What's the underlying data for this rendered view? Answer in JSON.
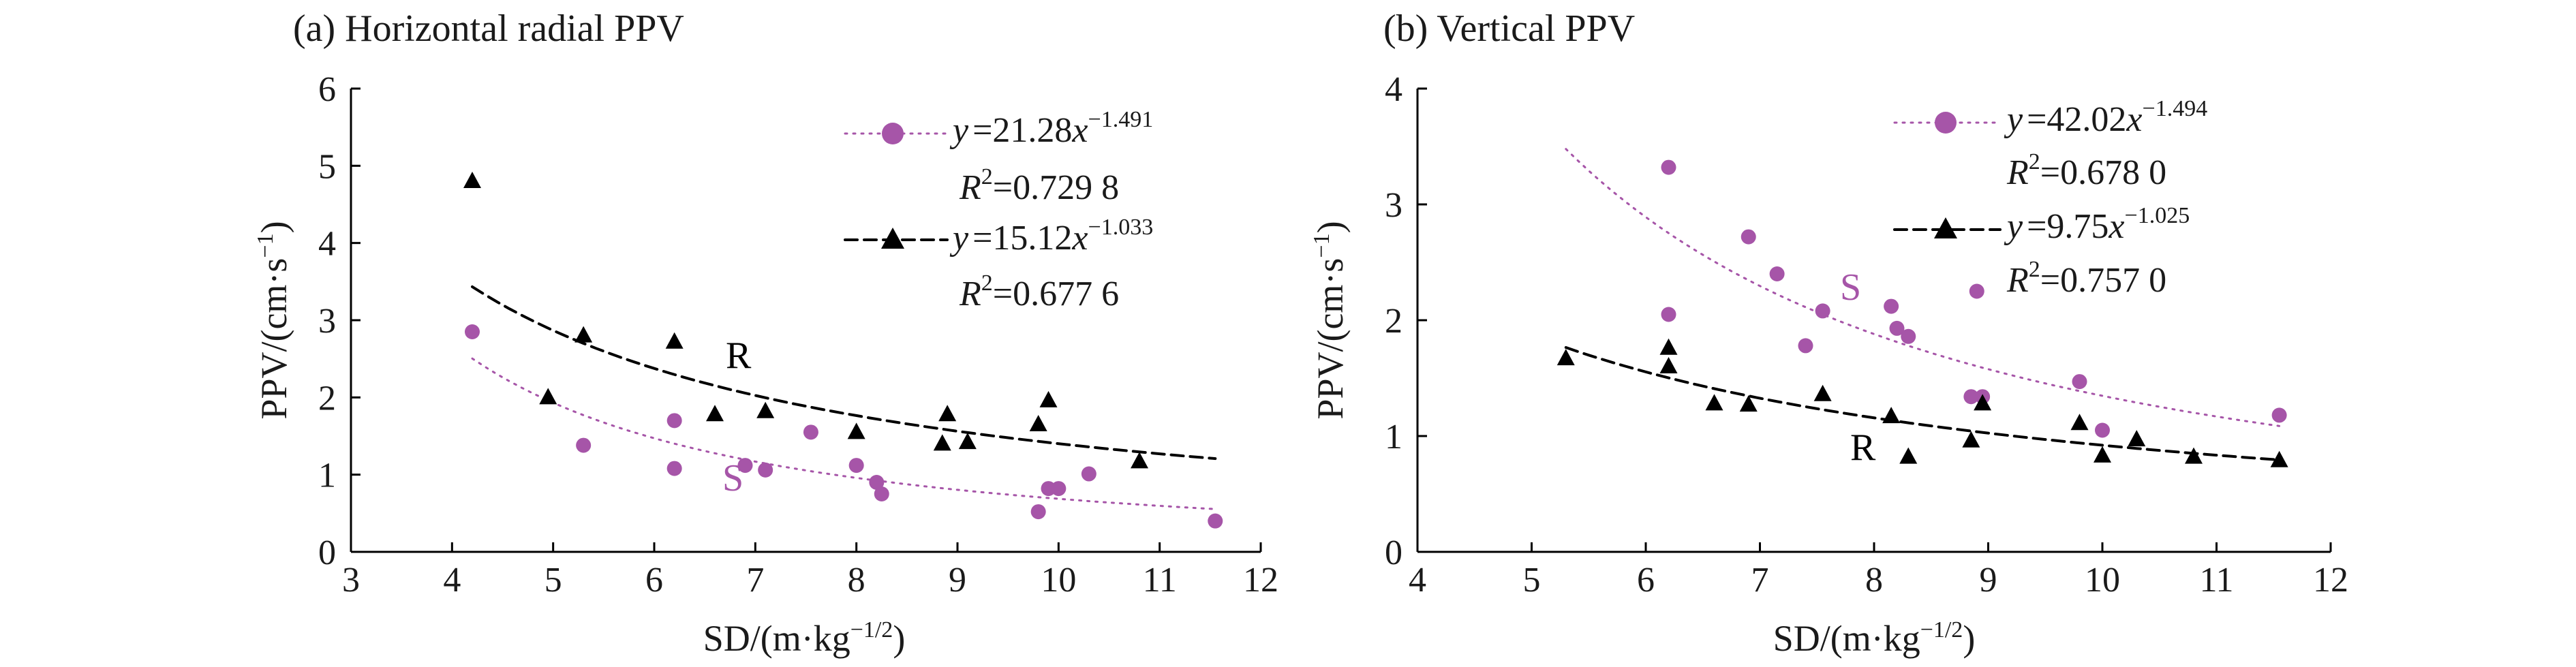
{
  "colors": {
    "s_series": "#a655a8",
    "r_series": "#000000",
    "axis": "#000000"
  },
  "chart_data": [
    {
      "type": "scatter",
      "title": "(a) Horizontal radial PPV",
      "xlabel": "SD/(m·kg",
      "xlabel_sup": "−1/2",
      "xlabel_end": ")",
      "ylabel": "PPV/(cm·s",
      "ylabel_sup": "−1",
      "ylabel_end": ")",
      "xlim": [
        3,
        12
      ],
      "ylim": [
        0,
        6
      ],
      "xticks": [
        3,
        4,
        5,
        6,
        7,
        8,
        9,
        10,
        11,
        12
      ],
      "yticks": [
        0,
        1,
        2,
        3,
        4,
        5,
        6
      ],
      "legend_position": "top-right",
      "series": [
        {
          "name": "S",
          "marker": "circle",
          "color": "#a655a8",
          "fit": {
            "a": 21.28,
            "b": -1.491,
            "x_range": [
              4.2,
              11.55
            ],
            "style": "dotted"
          },
          "equation": {
            "lhs": "y",
            "rhs": "=21.28",
            "var": "x",
            "exp": "−1.491",
            "r2_label": "R",
            "r2_value": "=0.729 8"
          },
          "points": [
            [
              4.2,
              2.85
            ],
            [
              5.3,
              1.38
            ],
            [
              6.2,
              1.7
            ],
            [
              6.2,
              1.08
            ],
            [
              6.9,
              1.12
            ],
            [
              7.1,
              1.06
            ],
            [
              7.55,
              1.55
            ],
            [
              8.0,
              1.12
            ],
            [
              8.2,
              0.9
            ],
            [
              8.25,
              0.75
            ],
            [
              9.8,
              0.52
            ],
            [
              9.9,
              0.82
            ],
            [
              10.0,
              0.82
            ],
            [
              10.3,
              1.01
            ],
            [
              11.55,
              0.4
            ]
          ]
        },
        {
          "name": "R",
          "marker": "triangle",
          "color": "#000000",
          "fit": {
            "a": 15.12,
            "b": -1.033,
            "x_range": [
              4.2,
              11.55
            ],
            "style": "dashed"
          },
          "equation": {
            "lhs": "y",
            "rhs": "=15.12",
            "var": "x",
            "exp": "−1.033",
            "r2_label": "R",
            "r2_value": "=0.677 6"
          },
          "points": [
            [
              4.2,
              4.8
            ],
            [
              4.95,
              2.0
            ],
            [
              5.3,
              2.8
            ],
            [
              6.2,
              2.72
            ],
            [
              6.6,
              1.78
            ],
            [
              7.1,
              1.82
            ],
            [
              8.0,
              1.55
            ],
            [
              8.85,
              1.4
            ],
            [
              8.9,
              1.78
            ],
            [
              9.1,
              1.42
            ],
            [
              9.8,
              1.65
            ],
            [
              9.9,
              1.96
            ],
            [
              10.8,
              1.17
            ]
          ]
        }
      ]
    },
    {
      "type": "scatter",
      "title": "(b) Vertical PPV",
      "xlabel": "SD/(m·kg",
      "xlabel_sup": "−1/2",
      "xlabel_end": ")",
      "ylabel": "PPV/(cm·s",
      "ylabel_sup": "−1",
      "ylabel_end": ")",
      "xlim": [
        4,
        12
      ],
      "ylim": [
        0,
        4
      ],
      "xticks": [
        4,
        5,
        6,
        7,
        8,
        9,
        10,
        11,
        12
      ],
      "yticks": [
        0,
        1,
        2,
        3,
        4
      ],
      "legend_position": "top-right",
      "series": [
        {
          "name": "S",
          "marker": "circle",
          "color": "#a655a8",
          "fit": {
            "a": 42.02,
            "b": -1.494,
            "x_range": [
              5.3,
              11.55
            ],
            "style": "dotted"
          },
          "equation": {
            "lhs": "y",
            "rhs": "=42.02",
            "var": "x",
            "exp": "−1.494",
            "r2_label": "R",
            "r2_value": "=0.678 0"
          },
          "points": [
            [
              6.2,
              3.32
            ],
            [
              6.2,
              2.05
            ],
            [
              6.9,
              2.72
            ],
            [
              7.15,
              2.4
            ],
            [
              7.4,
              1.78
            ],
            [
              7.55,
              2.08
            ],
            [
              8.15,
              2.12
            ],
            [
              8.2,
              1.93
            ],
            [
              8.3,
              1.86
            ],
            [
              8.85,
              1.34
            ],
            [
              8.9,
              2.25
            ],
            [
              8.95,
              1.34
            ],
            [
              9.8,
              1.47
            ],
            [
              10.0,
              1.05
            ],
            [
              11.55,
              1.18
            ]
          ]
        },
        {
          "name": "R",
          "marker": "triangle",
          "color": "#000000",
          "fit": {
            "a": 9.75,
            "b": -1.025,
            "x_range": [
              5.3,
              11.55
            ],
            "style": "dashed"
          },
          "equation": {
            "lhs": "y",
            "rhs": "=9.75",
            "var": "x",
            "exp": "−1.025",
            "r2_label": "R",
            "r2_value": "=0.757 0"
          },
          "points": [
            [
              5.3,
              1.67
            ],
            [
              6.2,
              1.76
            ],
            [
              6.2,
              1.6
            ],
            [
              6.6,
              1.28
            ],
            [
              6.9,
              1.27
            ],
            [
              7.55,
              1.36
            ],
            [
              8.15,
              1.17
            ],
            [
              8.3,
              0.82
            ],
            [
              8.85,
              0.96
            ],
            [
              8.95,
              1.28
            ],
            [
              9.8,
              1.11
            ],
            [
              10.0,
              0.83
            ],
            [
              10.3,
              0.97
            ],
            [
              10.8,
              0.82
            ],
            [
              11.55,
              0.79
            ]
          ]
        }
      ]
    }
  ]
}
